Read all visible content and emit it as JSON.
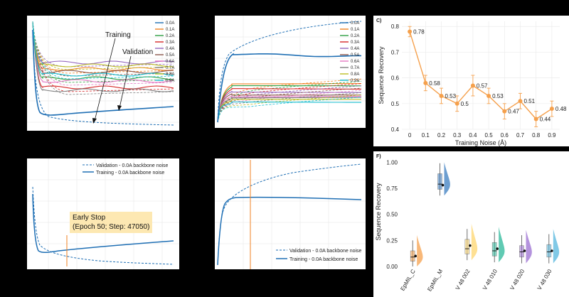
{
  "panel_a": {
    "annotations": {
      "training": "Training",
      "validation": "Validation"
    },
    "legend": [
      "0.0A",
      "0.1A",
      "0.2A",
      "0.3A",
      "0.4A",
      "0.5A",
      "0.6A",
      "0.7A",
      "0.8A",
      "0.9A"
    ],
    "colors": [
      "#1f6fb4",
      "#f08221",
      "#2ea043",
      "#d62728",
      "#9467bd",
      "#8c564b",
      "#e377c2",
      "#7f7f7f",
      "#bcbd22",
      "#17becf"
    ]
  },
  "panel_b": {
    "legend": [
      "0.0A",
      "0.1A",
      "0.2A",
      "0.3A",
      "0.4A",
      "0.5A",
      "0.6A",
      "0.7A",
      "0.8A",
      "0.9A"
    ]
  },
  "panel_d": {
    "legend": {
      "validation": "Validation - 0.0A backbone noise",
      "training": "Training - 0.0A backbone noise"
    },
    "early_stop_line1": "Early Stop",
    "early_stop_line2": "(Epoch 50; Step: 47050)"
  },
  "panel_e": {
    "legend": {
      "validation": "Validation - 0.0A backbone noise",
      "training": "Training - 0.0A backbone noise"
    }
  },
  "chart_data": [
    {
      "panel": "C",
      "type": "line",
      "label": "C)",
      "x": [
        0,
        0.1,
        0.2,
        0.3,
        0.4,
        0.5,
        0.6,
        0.7,
        0.8,
        0.9
      ],
      "values": [
        0.78,
        0.58,
        0.53,
        0.5,
        0.57,
        0.53,
        0.47,
        0.51,
        0.44,
        0.48
      ],
      "value_labels": [
        "0.78",
        "0.58",
        "0.53",
        "0.5",
        "0.57",
        "0.53",
        "0.47",
        "0.51",
        "0.44",
        "0.48"
      ],
      "errors": [
        0.02,
        0.03,
        0.03,
        0.03,
        0.04,
        0.03,
        0.03,
        0.03,
        0.03,
        0.03
      ],
      "xticks": [
        "0",
        "0.1",
        "0.2",
        "0.3",
        "0.4",
        "0.5",
        "0.6",
        "0.7",
        "0.8",
        "0.9"
      ],
      "yticks": [
        "0.4",
        "0.5",
        "0.6",
        "0.7",
        "0.8"
      ],
      "xlabel": "Training Noise (Å)",
      "ylabel": "Sequence Recovery",
      "ylim": [
        0.4,
        0.82
      ],
      "xlim": [
        -0.05,
        0.95
      ],
      "color": "#f5a04c",
      "grid": true
    },
    {
      "panel": "F",
      "type": "box",
      "label": "F)",
      "categories": [
        "EpMIL_C",
        "EpMIL_M",
        "V 48 002",
        "V 48 010",
        "V 48 020",
        "V 48 030"
      ],
      "medians": [
        0.09,
        0.79,
        0.17,
        0.15,
        0.14,
        0.14
      ],
      "q1": [
        0.05,
        0.74,
        0.12,
        0.1,
        0.09,
        0.09
      ],
      "q3": [
        0.15,
        0.89,
        0.26,
        0.23,
        0.2,
        0.21
      ],
      "means": [
        0.1,
        0.78,
        0.2,
        0.17,
        0.15,
        0.15
      ],
      "colors": [
        "#f5a04c",
        "#3b7dc0",
        "#fdd66f",
        "#2bb89a",
        "#9b6fd1",
        "#55b7dd"
      ],
      "yticks": [
        "0.00",
        "0.25",
        "0.50",
        "0.75",
        "1.00"
      ],
      "ylabel": "Sequence Recovery",
      "ylim": [
        0,
        1.05
      ]
    }
  ]
}
